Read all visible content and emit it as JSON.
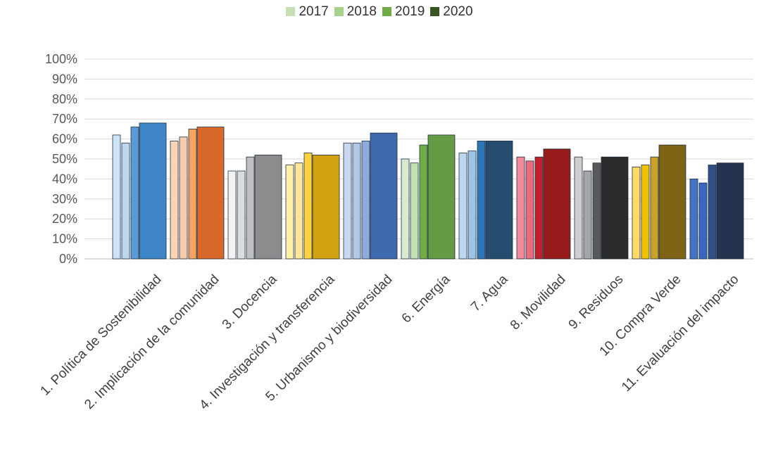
{
  "chart_data": {
    "type": "bar",
    "title": "",
    "xlabel": "",
    "ylabel": "",
    "ylim": [
      0,
      100
    ],
    "yticks": [
      "0%",
      "10%",
      "20%",
      "30%",
      "40%",
      "50%",
      "60%",
      "70%",
      "80%",
      "90%",
      "100%"
    ],
    "grid": true,
    "legend_position": "top",
    "legend": [
      {
        "label": "2017",
        "color": "#c6e0b4"
      },
      {
        "label": "2018",
        "color": "#a9d18e"
      },
      {
        "label": "2019",
        "color": "#70ad47"
      },
      {
        "label": "2020",
        "color": "#375623"
      }
    ],
    "categories": [
      "1. Política de Sostenibilidad",
      "2. Implicación de la comunidad",
      "3. Docencia",
      "4. Investigación y transferencia",
      "5. Urbanismo y biodiversidad",
      "6. Energía",
      "7. Agua",
      "8. Movilidad",
      "9. Residuos",
      "10. Compra Verde",
      "11. Evaluación del impacto"
    ],
    "series": [
      {
        "name": "2017",
        "values": [
          62,
          59,
          44,
          47,
          58,
          50,
          53,
          51,
          51,
          46,
          40
        ]
      },
      {
        "name": "2018",
        "values": [
          58,
          61,
          44,
          48,
          58,
          48,
          54,
          49,
          44,
          47,
          38
        ]
      },
      {
        "name": "2019",
        "values": [
          66,
          65,
          51,
          53,
          59,
          57,
          59,
          51,
          48,
          51,
          47
        ]
      },
      {
        "name": "2020",
        "values": [
          68,
          66,
          52,
          52,
          63,
          62,
          59,
          55,
          51,
          57,
          48
        ]
      }
    ],
    "series_colors": [
      [
        "#cde3f7",
        "#bdd7ee",
        "#5b9bd5",
        "#3d85c6"
      ],
      [
        "#fbd5b5",
        "#f8cbad",
        "#f4a460",
        "#d9692b"
      ],
      [
        "#f2f2f2",
        "#dcdcdc",
        "#bfbfbf",
        "#8c8c8c"
      ],
      [
        "#fff2a8",
        "#ffe699",
        "#ffd23f",
        "#d4a112"
      ],
      [
        "#c9d7f0",
        "#b4c7e7",
        "#8faadc",
        "#3e69ad"
      ],
      [
        "#d9ead3",
        "#c5e0b4",
        "#70ad47",
        "#649b44"
      ],
      [
        "#bdd7ee",
        "#9dc3e6",
        "#2e75b6",
        "#264d70"
      ],
      [
        "#f4899a",
        "#e86b7e",
        "#c0202e",
        "#971b1b"
      ],
      [
        "#d0cece",
        "#a6a6a6",
        "#595959",
        "#2b2b2b"
      ],
      [
        "#ffd966",
        "#f2c200",
        "#c9a227",
        "#7f6315"
      ],
      [
        "#4472c4",
        "#3a67c0",
        "#2f4f86",
        "#23334f"
      ]
    ]
  }
}
